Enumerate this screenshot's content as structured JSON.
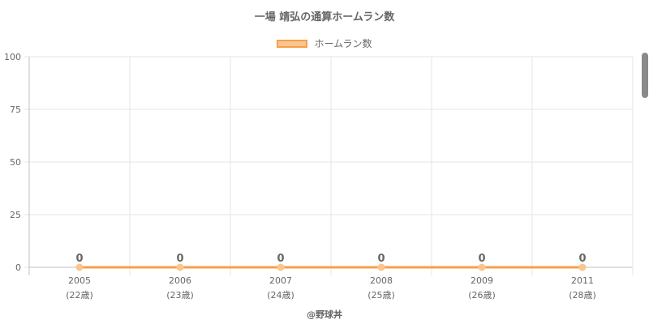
{
  "chart_data": {
    "type": "line",
    "title": "一場 靖弘の通算ホームラン数",
    "categories": [
      "2005",
      "2006",
      "2007",
      "2008",
      "2009",
      "2011"
    ],
    "category_sublabels": [
      "(22歳)",
      "(23歳)",
      "(24歳)",
      "(25歳)",
      "(26歳)",
      "(28歳)"
    ],
    "series": [
      {
        "name": "ホームラン数",
        "values": [
          0,
          0,
          0,
          0,
          0,
          0
        ]
      }
    ],
    "ylim": [
      0,
      100
    ],
    "yticks": [
      0,
      25,
      50,
      75,
      100
    ],
    "grid": true,
    "legend_position": "top-center",
    "colors": {
      "line": "#f5a04a",
      "fill": "#fbc58e",
      "grid": "#e6e6e6",
      "axis": "#c0c0c0",
      "text": "#666666"
    }
  },
  "footer": "@野球丼"
}
